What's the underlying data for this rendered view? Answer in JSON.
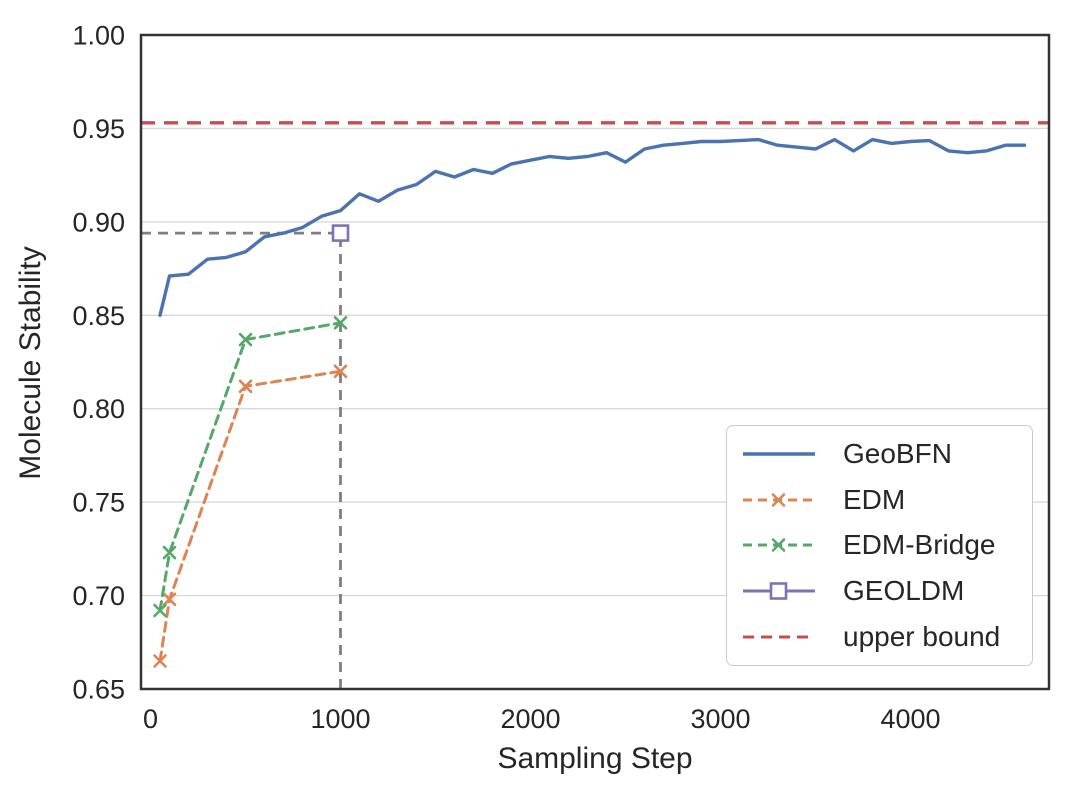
{
  "chart_data": {
    "type": "line",
    "title": "",
    "xlabel": "Sampling Step",
    "ylabel": "Molecule Stability",
    "xlim": [
      -50,
      4729
    ],
    "ylim": [
      0.65,
      1.0
    ],
    "xticks": {
      "values": [
        0,
        1000,
        2000,
        3000,
        4000
      ],
      "labels": [
        "0",
        "1000",
        "2000",
        "3000",
        "4000"
      ]
    },
    "yticks": {
      "values": [
        1.0,
        0.95,
        0.9,
        0.85,
        0.8,
        0.75,
        0.7,
        0.65
      ],
      "labels": [
        "1.00",
        "0.95",
        "0.90",
        "0.85",
        "0.80",
        "0.75",
        "0.70",
        "0.65"
      ]
    },
    "grid": {
      "horizontal": true,
      "vertical": false,
      "color": "#d9d9d9"
    },
    "axis": {
      "spine_color": "#333333",
      "text_color": "#262626"
    },
    "legend": {
      "position": "lower-right",
      "entries": [
        "GeoBFN",
        "EDM",
        "EDM-Bridge",
        "GEOLDM",
        "upper bound"
      ]
    },
    "series": [
      {
        "name": "GeoBFN",
        "color": "#4C72B0",
        "style": "solid",
        "marker": "none",
        "x": [
          50,
          100,
          200,
          300,
          400,
          500,
          600,
          700,
          800,
          900,
          1000,
          1100,
          1200,
          1300,
          1400,
          1500,
          1600,
          1700,
          1800,
          1900,
          2000,
          2100,
          2200,
          2300,
          2400,
          2500,
          2600,
          2700,
          2800,
          2900,
          3000,
          3100,
          3200,
          3300,
          3400,
          3500,
          3600,
          3700,
          3800,
          3900,
          4000,
          4100,
          4200,
          4300,
          4400,
          4500,
          4600
        ],
        "y": [
          0.85,
          0.871,
          0.872,
          0.88,
          0.881,
          0.884,
          0.892,
          0.894,
          0.897,
          0.903,
          0.906,
          0.915,
          0.911,
          0.917,
          0.92,
          0.927,
          0.924,
          0.928,
          0.926,
          0.931,
          0.933,
          0.935,
          0.934,
          0.935,
          0.937,
          0.932,
          0.939,
          0.941,
          0.942,
          0.943,
          0.943,
          0.9435,
          0.944,
          0.941,
          0.94,
          0.939,
          0.944,
          0.938,
          0.944,
          0.942,
          0.943,
          0.9435,
          0.938,
          0.937,
          0.938,
          0.941,
          0.941
        ]
      },
      {
        "name": "EDM",
        "color": "#DD8452",
        "style": "dashed",
        "marker": "x",
        "x": [
          50,
          100,
          500,
          1000
        ],
        "y": [
          0.665,
          0.698,
          0.812,
          0.82
        ]
      },
      {
        "name": "EDM-Bridge",
        "color": "#55A868",
        "style": "dashed",
        "marker": "x",
        "x": [
          50,
          100,
          500,
          1000
        ],
        "y": [
          0.692,
          0.723,
          0.837,
          0.846
        ]
      },
      {
        "name": "GEOLDM",
        "color": "#8172B3",
        "style": "solid",
        "marker": "square-open",
        "x": [
          1000
        ],
        "y": [
          0.894
        ]
      },
      {
        "name": "upper bound",
        "color": "#C44E52",
        "style": "dashed",
        "marker": "none",
        "hline": true,
        "y_value": 0.953
      }
    ],
    "annotations": [
      {
        "name": "geoldm-guide",
        "type": "guide-lines",
        "x": 1000,
        "y": 0.894,
        "color": "#7f7f7f",
        "style": "dashed"
      }
    ]
  }
}
